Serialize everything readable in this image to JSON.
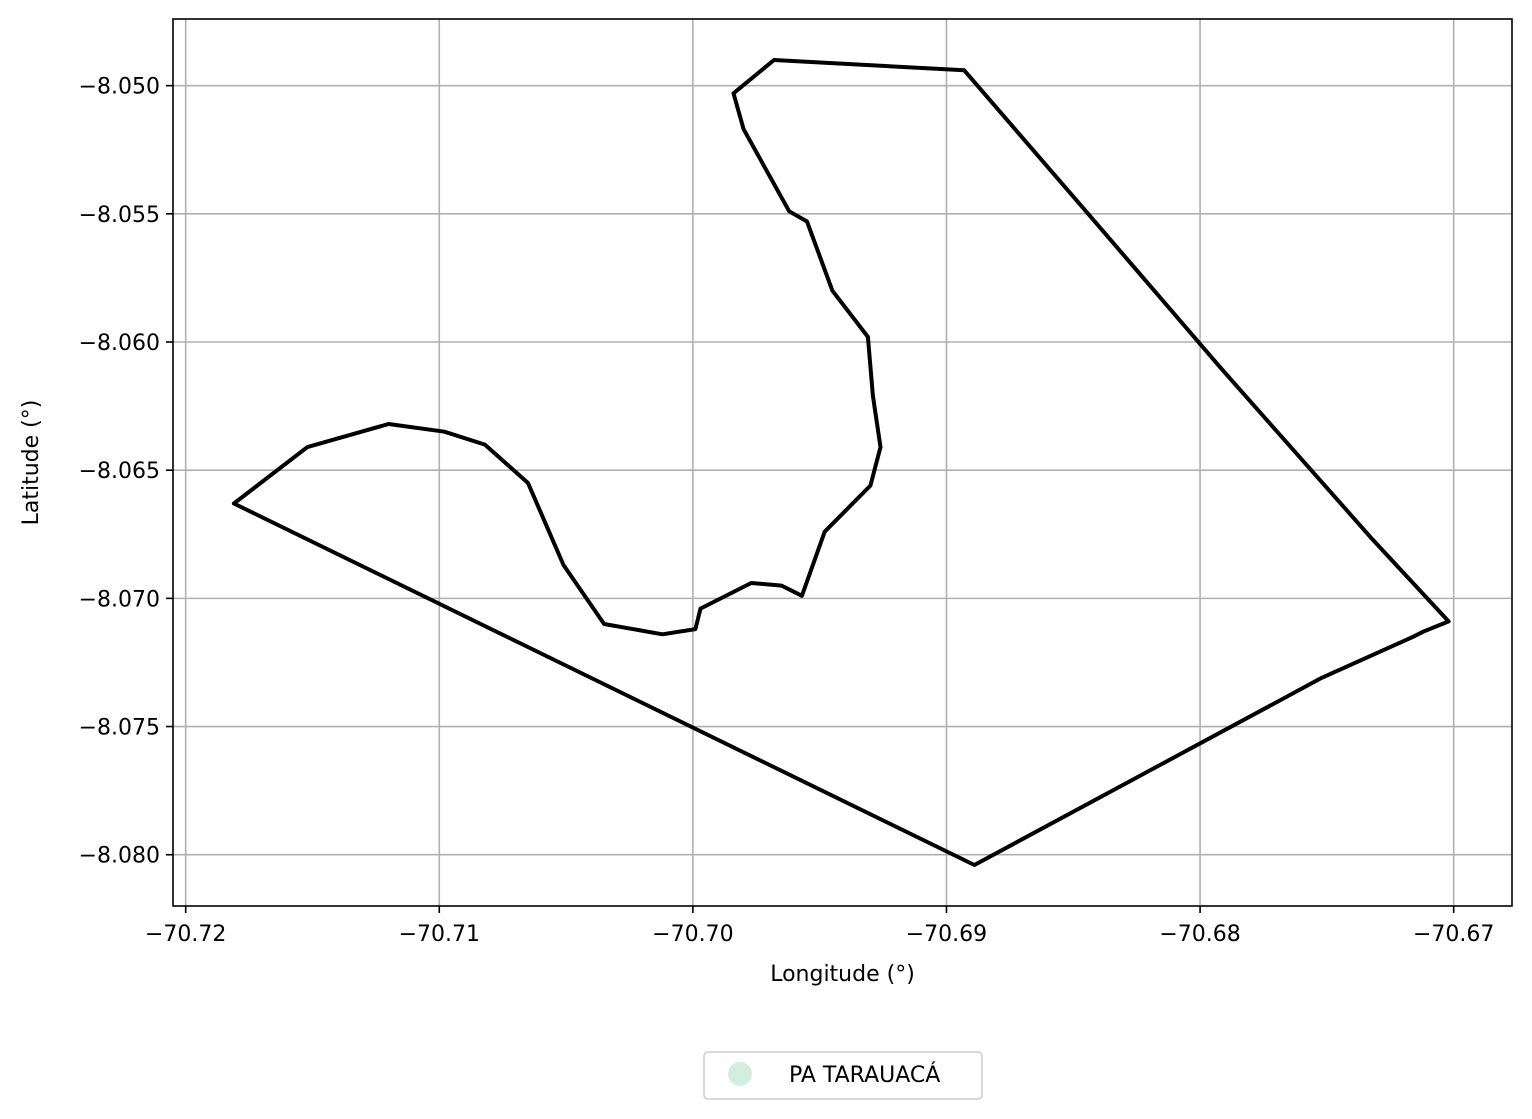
{
  "chart_data": {
    "type": "line",
    "title": "",
    "xlabel": "Longitude (°)",
    "ylabel": "Latitude (°)",
    "xlim": [
      -70.7205,
      -70.6677
    ],
    "ylim": [
      -8.082,
      -8.0474
    ],
    "xticks": [
      -70.72,
      -70.71,
      -70.7,
      -70.69,
      -70.68,
      -70.67
    ],
    "xtick_labels": [
      "−70.72",
      "−70.71",
      "−70.70",
      "−70.69",
      "−70.68",
      "−70.67"
    ],
    "yticks": [
      -8.05,
      -8.055,
      -8.06,
      -8.065,
      -8.07,
      -8.075,
      -8.08
    ],
    "ytick_labels": [
      "−8.050",
      "−8.055",
      "−8.060",
      "−8.065",
      "−8.070",
      "−8.075",
      "−8.080"
    ],
    "grid": true,
    "legend_position": "bottom-center, below plot",
    "series": [
      {
        "name": "PA TARAUACÁ",
        "line_color": "#000000",
        "legend_marker_color": "#d4ede1",
        "x": [
          -70.7181,
          -70.7152,
          -70.712,
          -70.7098,
          -70.7082,
          -70.7065,
          -70.7051,
          -70.7035,
          -70.7012,
          -70.6999,
          -70.6997,
          -70.6977,
          -70.6965,
          -70.6957,
          -70.6948,
          -70.693,
          -70.6926,
          -70.6929,
          -70.6931,
          -70.6945,
          -70.6955,
          -70.6962,
          -70.698,
          -70.6984,
          -70.6968,
          -70.6893,
          -70.6845,
          -70.6792,
          -70.6732,
          -70.6702,
          -70.6712,
          -70.6716,
          -70.6752,
          -70.6889,
          -70.7181
        ],
        "y": [
          -8.0663,
          -8.0641,
          -8.0632,
          -8.0635,
          -8.064,
          -8.0655,
          -8.0687,
          -8.071,
          -8.0714,
          -8.0712,
          -8.0704,
          -8.0694,
          -8.0695,
          -8.0699,
          -8.0674,
          -8.0656,
          -8.0641,
          -8.0621,
          -8.0598,
          -8.058,
          -8.0553,
          -8.0549,
          -8.0517,
          -8.0503,
          -8.049,
          -8.0494,
          -8.0549,
          -8.061,
          -8.0677,
          -8.0709,
          -8.0713,
          -8.0715,
          -8.0731,
          -8.0804,
          -8.0663
        ]
      }
    ]
  }
}
